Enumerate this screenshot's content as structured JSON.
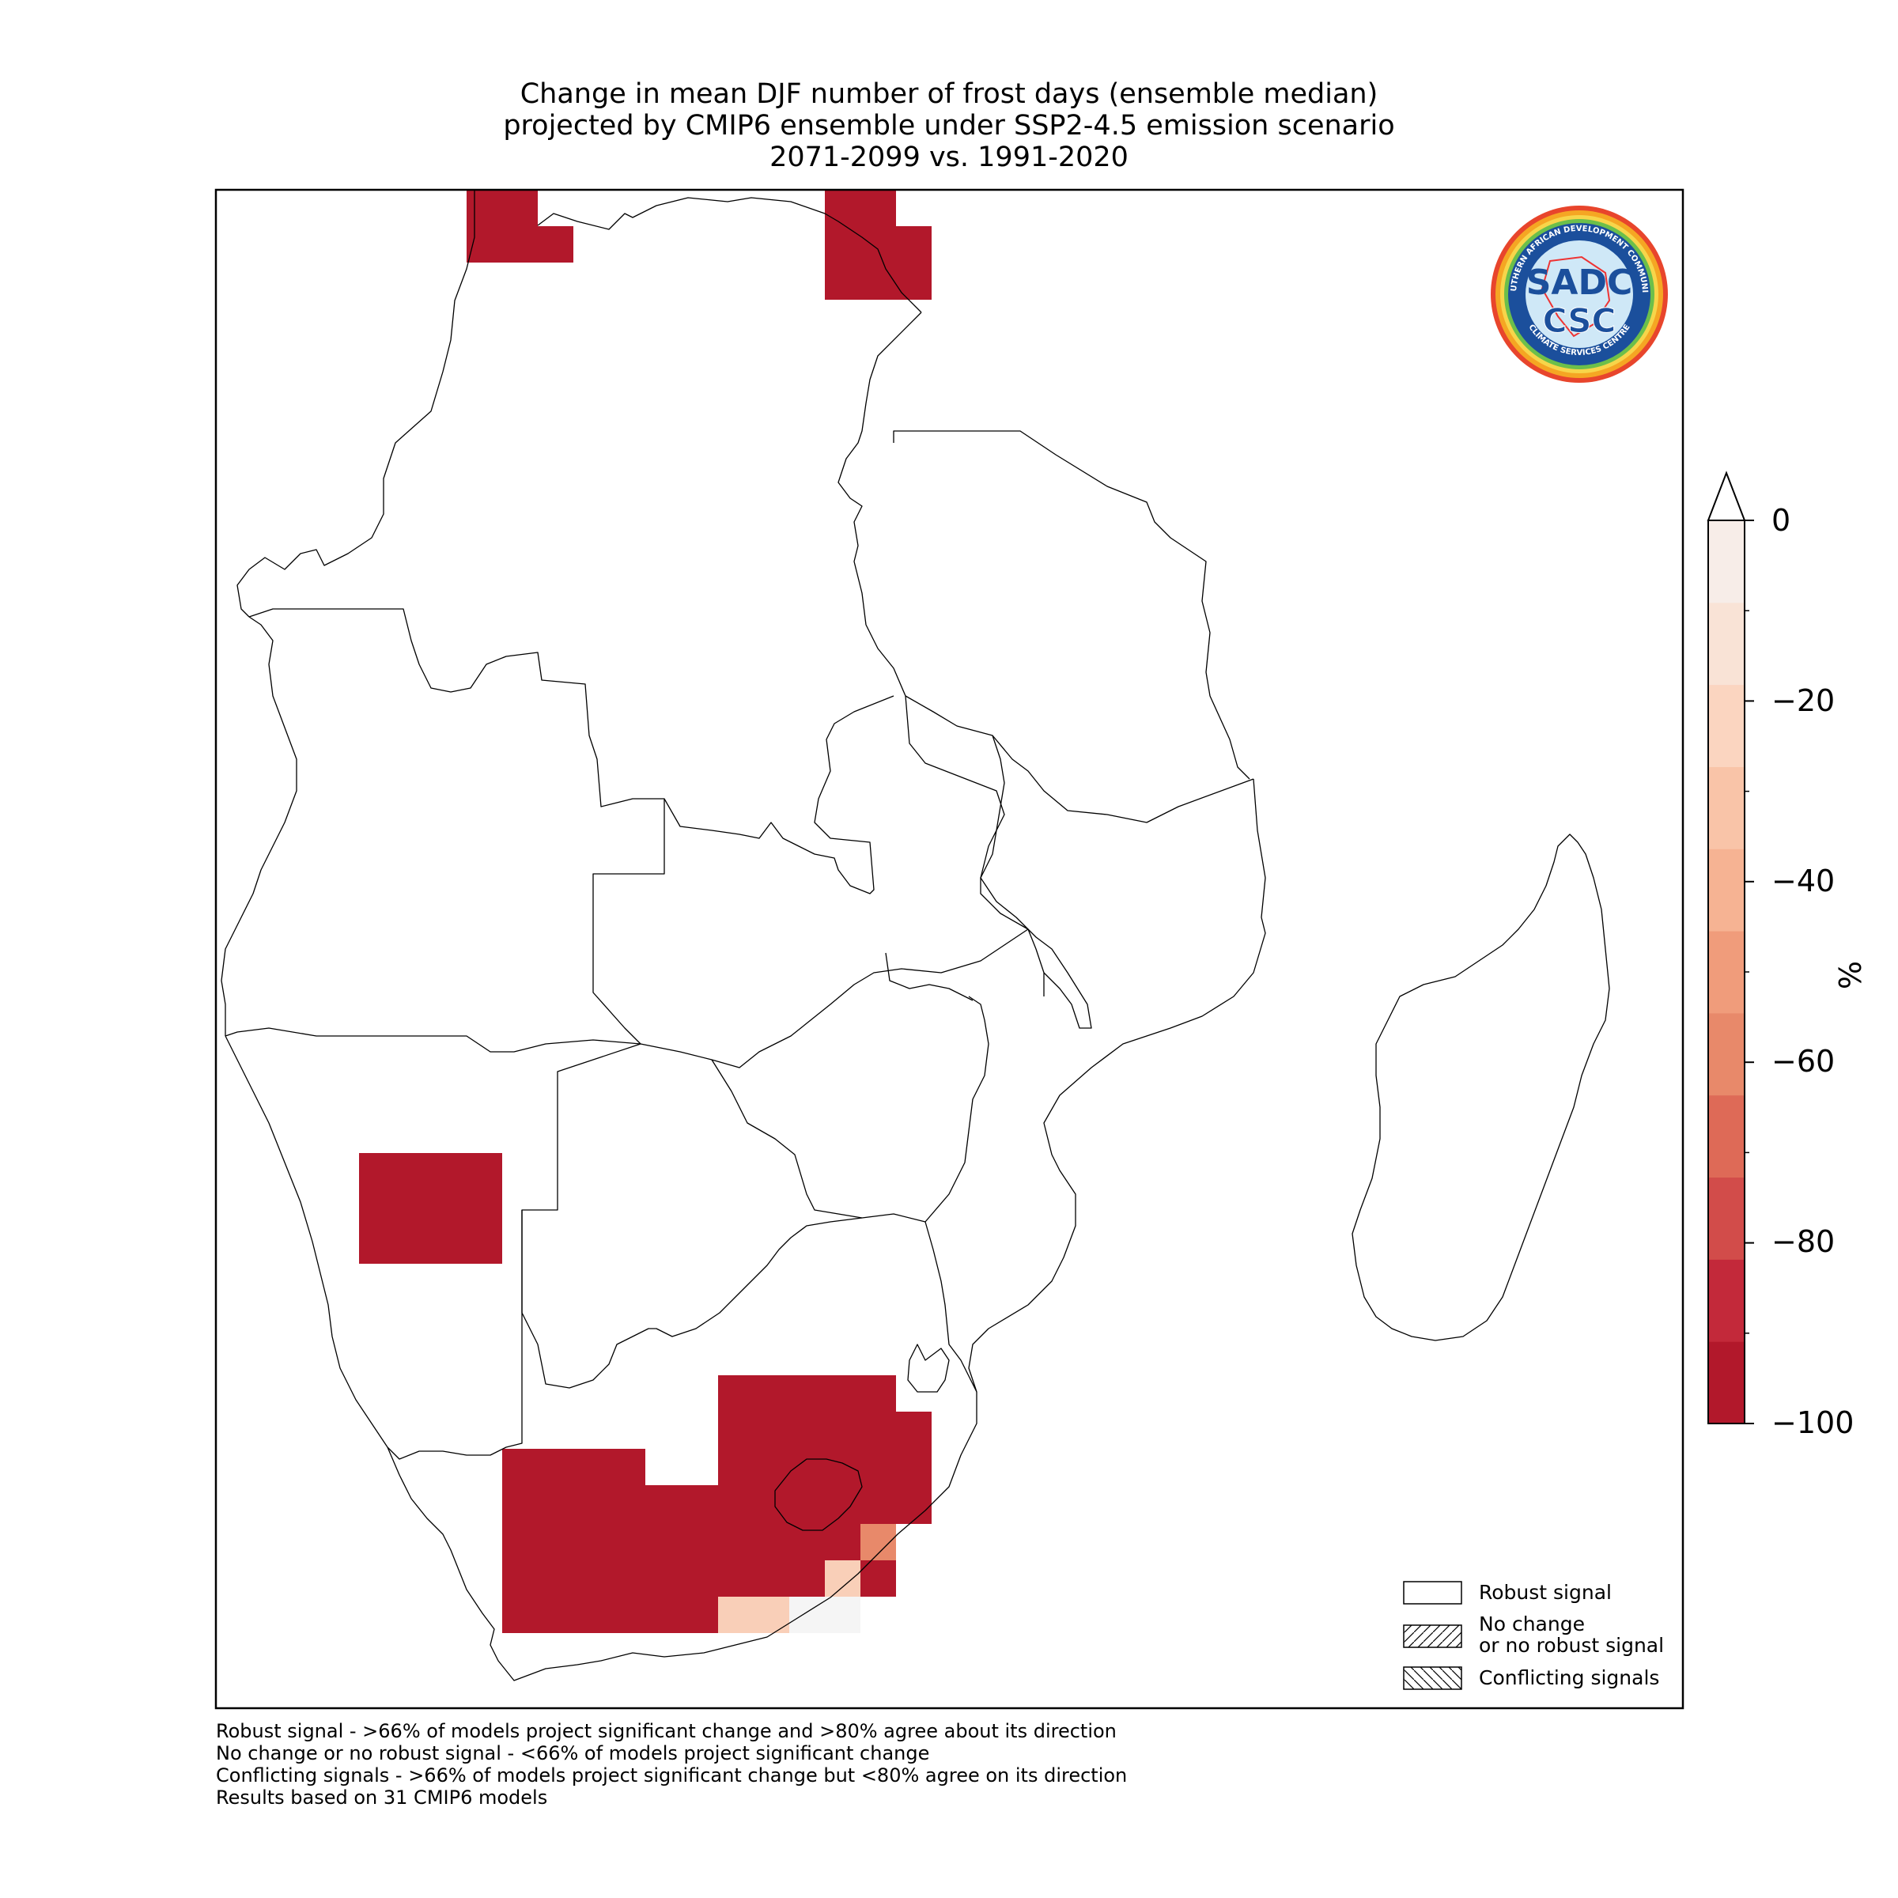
{
  "title": {
    "line1": "Change in mean DJF number of frost days (ensemble median)",
    "line2": "projected by CMIP6 ensemble under SSP2-4.5 emission scenario",
    "line3": "2071-2099 vs. 1991-2020"
  },
  "logo": {
    "name": "SADC CSC logo",
    "text_ring_top": "SOUTHERN AFRICAN DEVELOPMENT COMMUNITY",
    "text_ring_bottom": "CLIMATE SERVICES CENTRE",
    "text_main_1": "SADC",
    "text_main_2": "CSC"
  },
  "colorbar": {
    "unit": "%",
    "ticks": [
      "0",
      "−20",
      "−40",
      "−60",
      "−80",
      "−100"
    ],
    "colors": [
      "#b2182b",
      "#c3293a",
      "#d24c4a",
      "#de6a57",
      "#e8896a",
      "#f09c7b",
      "#f6b393",
      "#f9c4a8",
      "#fbd5c0",
      "#f9e3d6",
      "#f7ede8"
    ],
    "min": -100,
    "max": 0
  },
  "legend": {
    "robust": "Robust signal",
    "no_change_1": "No change",
    "no_change_2": "or no robust signal",
    "conflicting": "Conflicting signals"
  },
  "footnotes": {
    "line1": "Robust signal - >66% of models project significant change and >80% agree about its direction",
    "line2": "No change or no robust signal - <66% of models project significant change",
    "line3": "Conflicting signals - >66% of models project significant change but <80% agree on its direction",
    "line4": "Results based on 31 CMIP6 models"
  },
  "colors": {
    "strong": "#b2182b",
    "medium": "#e8896a",
    "light": "#f9cfb8",
    "pale": "#f5f5f5"
  }
}
